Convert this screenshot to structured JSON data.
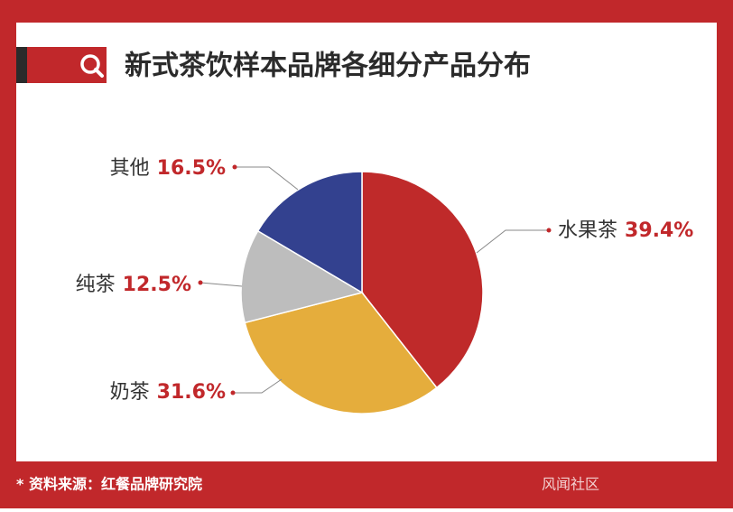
{
  "chart_data": {
    "type": "pie",
    "title": "新式茶饮样本品牌各细分产品分布",
    "categories": [
      "水果茶",
      "奶茶",
      "纯茶",
      "其他"
    ],
    "values": [
      39.4,
      31.6,
      12.5,
      16.5
    ],
    "value_labels": [
      "39.4%",
      "31.6%",
      "12.5%",
      "16.5%"
    ],
    "colors": [
      "#bf2a2a",
      "#e5ad3c",
      "#bdbdbd",
      "#33418f"
    ],
    "source": "* 资料来源：红餐品牌研究院",
    "watermark": "风闻社区"
  }
}
